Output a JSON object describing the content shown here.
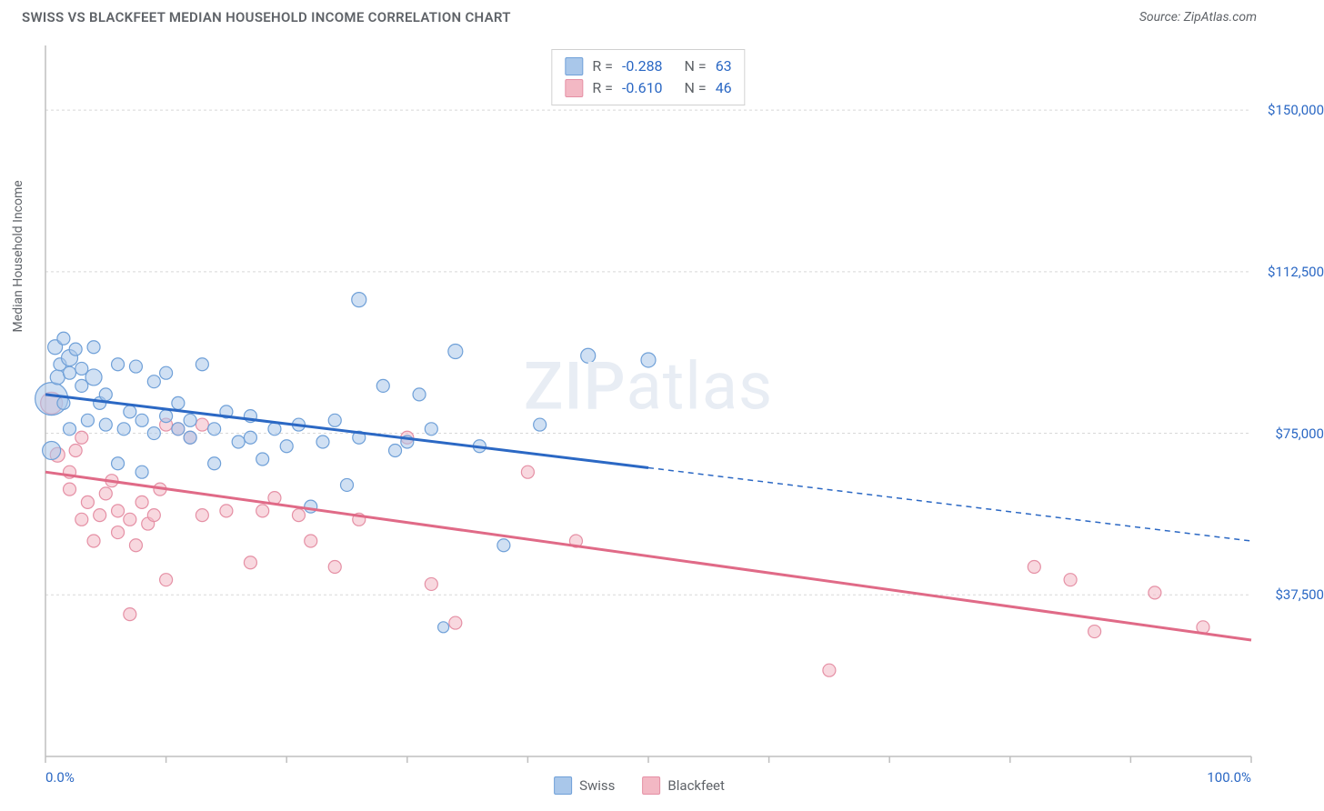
{
  "header": {
    "title": "SWISS VS BLACKFEET MEDIAN HOUSEHOLD INCOME CORRELATION CHART",
    "source": "Source: ZipAtlas.com"
  },
  "watermark": {
    "bold": "ZIP",
    "light": "atlas"
  },
  "chart": {
    "type": "scatter",
    "ylabel": "Median Household Income",
    "xlim": [
      0,
      100
    ],
    "ylim": [
      0,
      165000
    ],
    "xticks": [
      0,
      10,
      20,
      30,
      40,
      50,
      60,
      70,
      80,
      90,
      100
    ],
    "xtick_labels": {
      "0": "0.0%",
      "100": "100.0%"
    },
    "yticks": [
      37500,
      75000,
      112500,
      150000
    ],
    "ytick_labels": [
      "$37,500",
      "$75,000",
      "$112,500",
      "$150,000"
    ],
    "grid_color": "#d8d8d8",
    "axis_color": "#bfbfbf",
    "background": "#ffffff",
    "series": [
      {
        "name": "Swiss",
        "fill": "#a9c7ea",
        "fill_opacity": 0.55,
        "stroke": "#6fa0d8",
        "line_color": "#2b68c4",
        "R_label": "R = ",
        "R_value": "-0.288",
        "N_label": "N = ",
        "N_value": "63",
        "trend": {
          "x1": 0,
          "y1": 84000,
          "x2": 100,
          "y2": 50000,
          "solid_until_x": 50
        },
        "points": [
          {
            "x": 0.5,
            "y": 71000,
            "r": 10
          },
          {
            "x": 0.5,
            "y": 83000,
            "r": 18
          },
          {
            "x": 0.8,
            "y": 95000,
            "r": 8
          },
          {
            "x": 1,
            "y": 88000,
            "r": 8
          },
          {
            "x": 1.2,
            "y": 91000,
            "r": 7
          },
          {
            "x": 1.5,
            "y": 82000,
            "r": 7
          },
          {
            "x": 1.5,
            "y": 97000,
            "r": 7
          },
          {
            "x": 2,
            "y": 92500,
            "r": 9
          },
          {
            "x": 2,
            "y": 89000,
            "r": 7
          },
          {
            "x": 2,
            "y": 76000,
            "r": 7
          },
          {
            "x": 2.5,
            "y": 94500,
            "r": 7
          },
          {
            "x": 3,
            "y": 90000,
            "r": 7
          },
          {
            "x": 3,
            "y": 86000,
            "r": 7
          },
          {
            "x": 3.5,
            "y": 78000,
            "r": 7
          },
          {
            "x": 4,
            "y": 95000,
            "r": 7
          },
          {
            "x": 4,
            "y": 88000,
            "r": 9
          },
          {
            "x": 4.5,
            "y": 82000,
            "r": 7
          },
          {
            "x": 5,
            "y": 77000,
            "r": 7
          },
          {
            "x": 5,
            "y": 84000,
            "r": 7
          },
          {
            "x": 6,
            "y": 91000,
            "r": 7
          },
          {
            "x": 6,
            "y": 68000,
            "r": 7
          },
          {
            "x": 6.5,
            "y": 76000,
            "r": 7
          },
          {
            "x": 7,
            "y": 80000,
            "r": 7
          },
          {
            "x": 7.5,
            "y": 90500,
            "r": 7
          },
          {
            "x": 8,
            "y": 66000,
            "r": 7
          },
          {
            "x": 8,
            "y": 78000,
            "r": 7
          },
          {
            "x": 9,
            "y": 87000,
            "r": 7
          },
          {
            "x": 9,
            "y": 75000,
            "r": 7
          },
          {
            "x": 10,
            "y": 89000,
            "r": 7
          },
          {
            "x": 10,
            "y": 79000,
            "r": 7
          },
          {
            "x": 11,
            "y": 76000,
            "r": 7
          },
          {
            "x": 11,
            "y": 82000,
            "r": 7
          },
          {
            "x": 12,
            "y": 74000,
            "r": 7
          },
          {
            "x": 12,
            "y": 78000,
            "r": 7
          },
          {
            "x": 13,
            "y": 91000,
            "r": 7
          },
          {
            "x": 14,
            "y": 76000,
            "r": 7
          },
          {
            "x": 14,
            "y": 68000,
            "r": 7
          },
          {
            "x": 15,
            "y": 80000,
            "r": 7
          },
          {
            "x": 16,
            "y": 73000,
            "r": 7
          },
          {
            "x": 17,
            "y": 74000,
            "r": 7
          },
          {
            "x": 17,
            "y": 79000,
            "r": 7
          },
          {
            "x": 18,
            "y": 69000,
            "r": 7
          },
          {
            "x": 19,
            "y": 76000,
            "r": 7
          },
          {
            "x": 20,
            "y": 72000,
            "r": 7
          },
          {
            "x": 21,
            "y": 77000,
            "r": 7
          },
          {
            "x": 22,
            "y": 58000,
            "r": 7
          },
          {
            "x": 23,
            "y": 73000,
            "r": 7
          },
          {
            "x": 24,
            "y": 78000,
            "r": 7
          },
          {
            "x": 25,
            "y": 63000,
            "r": 7
          },
          {
            "x": 26,
            "y": 74000,
            "r": 7
          },
          {
            "x": 26,
            "y": 106000,
            "r": 8
          },
          {
            "x": 28,
            "y": 86000,
            "r": 7
          },
          {
            "x": 29,
            "y": 71000,
            "r": 7
          },
          {
            "x": 30,
            "y": 73000,
            "r": 7
          },
          {
            "x": 31,
            "y": 84000,
            "r": 7
          },
          {
            "x": 32,
            "y": 76000,
            "r": 7
          },
          {
            "x": 33,
            "y": 30000,
            "r": 6
          },
          {
            "x": 34,
            "y": 94000,
            "r": 8
          },
          {
            "x": 36,
            "y": 72000,
            "r": 7
          },
          {
            "x": 38,
            "y": 49000,
            "r": 7
          },
          {
            "x": 41,
            "y": 77000,
            "r": 7
          },
          {
            "x": 45,
            "y": 93000,
            "r": 8
          },
          {
            "x": 50,
            "y": 92000,
            "r": 8
          }
        ]
      },
      {
        "name": "Blackfeet",
        "fill": "#f3b8c4",
        "fill_opacity": 0.55,
        "stroke": "#e590a5",
        "line_color": "#e06a87",
        "R_label": "R = ",
        "R_value": "-0.610",
        "N_label": "N = ",
        "N_value": "46",
        "trend": {
          "x1": 0,
          "y1": 66000,
          "x2": 100,
          "y2": 27000,
          "solid_until_x": 100
        },
        "points": [
          {
            "x": 0.5,
            "y": 82000,
            "r": 12
          },
          {
            "x": 1,
            "y": 70000,
            "r": 8
          },
          {
            "x": 2,
            "y": 62000,
            "r": 7
          },
          {
            "x": 2,
            "y": 66000,
            "r": 7
          },
          {
            "x": 2.5,
            "y": 71000,
            "r": 7
          },
          {
            "x": 3,
            "y": 55000,
            "r": 7
          },
          {
            "x": 3,
            "y": 74000,
            "r": 7
          },
          {
            "x": 3.5,
            "y": 59000,
            "r": 7
          },
          {
            "x": 4,
            "y": 50000,
            "r": 7
          },
          {
            "x": 4.5,
            "y": 56000,
            "r": 7
          },
          {
            "x": 5,
            "y": 61000,
            "r": 7
          },
          {
            "x": 5.5,
            "y": 64000,
            "r": 7
          },
          {
            "x": 6,
            "y": 52000,
            "r": 7
          },
          {
            "x": 6,
            "y": 57000,
            "r": 7
          },
          {
            "x": 7,
            "y": 33000,
            "r": 7
          },
          {
            "x": 7,
            "y": 55000,
            "r": 7
          },
          {
            "x": 7.5,
            "y": 49000,
            "r": 7
          },
          {
            "x": 8,
            "y": 59000,
            "r": 7
          },
          {
            "x": 8.5,
            "y": 54000,
            "r": 7
          },
          {
            "x": 9,
            "y": 56000,
            "r": 7
          },
          {
            "x": 9.5,
            "y": 62000,
            "r": 7
          },
          {
            "x": 10,
            "y": 41000,
            "r": 7
          },
          {
            "x": 10,
            "y": 77000,
            "r": 7
          },
          {
            "x": 11,
            "y": 76000,
            "r": 7
          },
          {
            "x": 12,
            "y": 74000,
            "r": 7
          },
          {
            "x": 13,
            "y": 56000,
            "r": 7
          },
          {
            "x": 13,
            "y": 77000,
            "r": 7
          },
          {
            "x": 15,
            "y": 57000,
            "r": 7
          },
          {
            "x": 17,
            "y": 45000,
            "r": 7
          },
          {
            "x": 18,
            "y": 57000,
            "r": 7
          },
          {
            "x": 19,
            "y": 60000,
            "r": 7
          },
          {
            "x": 21,
            "y": 56000,
            "r": 7
          },
          {
            "x": 22,
            "y": 50000,
            "r": 7
          },
          {
            "x": 24,
            "y": 44000,
            "r": 7
          },
          {
            "x": 26,
            "y": 55000,
            "r": 7
          },
          {
            "x": 30,
            "y": 74000,
            "r": 7
          },
          {
            "x": 32,
            "y": 40000,
            "r": 7
          },
          {
            "x": 34,
            "y": 31000,
            "r": 7
          },
          {
            "x": 40,
            "y": 66000,
            "r": 7
          },
          {
            "x": 44,
            "y": 50000,
            "r": 7
          },
          {
            "x": 65,
            "y": 20000,
            "r": 7
          },
          {
            "x": 82,
            "y": 44000,
            "r": 7
          },
          {
            "x": 85,
            "y": 41000,
            "r": 7
          },
          {
            "x": 87,
            "y": 29000,
            "r": 7
          },
          {
            "x": 92,
            "y": 38000,
            "r": 7
          },
          {
            "x": 96,
            "y": 30000,
            "r": 7
          }
        ]
      }
    ]
  },
  "legend": {
    "swiss": "Swiss",
    "blackfeet": "Blackfeet"
  }
}
